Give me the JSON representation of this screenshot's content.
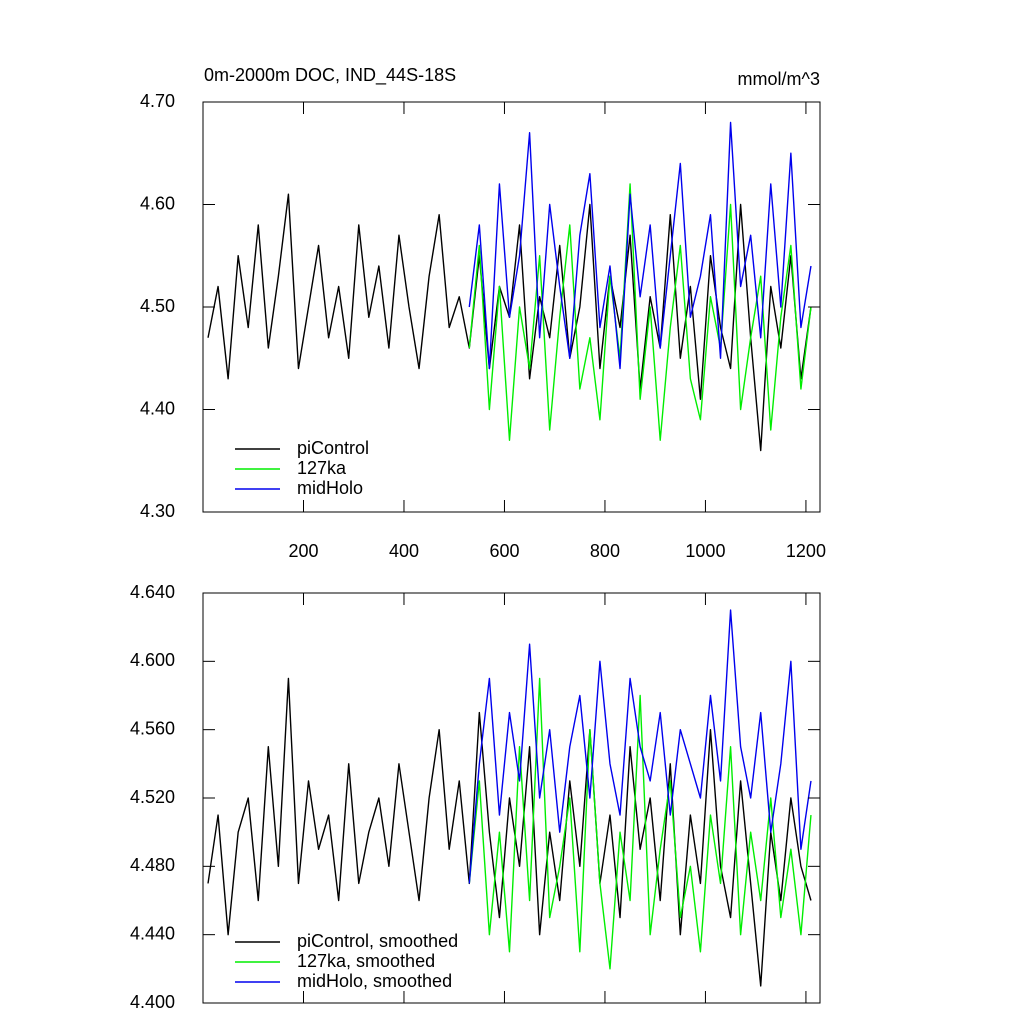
{
  "chart_data": [
    {
      "type": "line",
      "title": "0m-2000m DOC, IND_44S-18S",
      "annotation": "mmol/m^3",
      "x": [
        10,
        30,
        50,
        70,
        90,
        110,
        130,
        150,
        170,
        190,
        210,
        230,
        250,
        270,
        290,
        310,
        330,
        350,
        370,
        390,
        410,
        430,
        450,
        470,
        490,
        510,
        530,
        550,
        570,
        590,
        610,
        630,
        650,
        670,
        690,
        710,
        730,
        750,
        770,
        790,
        810,
        830,
        850,
        870,
        890,
        910,
        930,
        950,
        970,
        990,
        1010,
        1030,
        1050,
        1070,
        1090,
        1110,
        1130,
        1150,
        1170,
        1190,
        1210
      ],
      "xlim": [
        0,
        1228
      ],
      "xticks": [
        200,
        400,
        600,
        800,
        1000,
        1200
      ],
      "ylim": [
        4.3,
        4.7
      ],
      "yticks": [
        {
          "value": 4.3,
          "label": "4.30"
        },
        {
          "value": 4.4,
          "label": "4.40"
        },
        {
          "value": 4.5,
          "label": "4.50"
        },
        {
          "value": 4.6,
          "label": "4.60"
        },
        {
          "value": 4.7,
          "label": "4.70"
        }
      ],
      "series": [
        {
          "name": "piControl",
          "color": "#000000",
          "values": [
            4.47,
            4.52,
            4.43,
            4.55,
            4.48,
            4.58,
            4.46,
            4.53,
            4.61,
            4.44,
            4.5,
            4.56,
            4.47,
            4.52,
            4.45,
            4.58,
            4.49,
            4.54,
            4.46,
            4.57,
            4.5,
            4.44,
            4.53,
            4.59,
            4.48,
            4.51,
            4.46,
            4.55,
            4.44,
            4.52,
            4.49,
            4.58,
            4.43,
            4.51,
            4.47,
            4.56,
            4.45,
            4.5,
            4.6,
            4.44,
            4.53,
            4.48,
            4.57,
            4.42,
            4.51,
            4.46,
            4.59,
            4.45,
            4.52,
            4.41,
            4.55,
            4.48,
            4.44,
            4.6,
            4.47,
            4.36,
            4.52,
            4.46,
            4.55,
            4.43,
            4.5
          ]
        },
        {
          "name": "127ka",
          "color": "#00ee00",
          "values": [
            null,
            null,
            null,
            null,
            null,
            null,
            null,
            null,
            null,
            null,
            null,
            null,
            null,
            null,
            null,
            null,
            null,
            null,
            null,
            null,
            null,
            null,
            null,
            null,
            null,
            null,
            4.46,
            4.56,
            4.4,
            4.52,
            4.37,
            4.5,
            4.44,
            4.55,
            4.38,
            4.49,
            4.58,
            4.42,
            4.47,
            4.39,
            4.53,
            4.45,
            4.62,
            4.41,
            4.5,
            4.37,
            4.48,
            4.56,
            4.43,
            4.39,
            4.51,
            4.46,
            4.6,
            4.4,
            4.47,
            4.53,
            4.38,
            4.49,
            4.56,
            4.42,
            4.5
          ]
        },
        {
          "name": "midHolo",
          "color": "#0000ee",
          "values": [
            null,
            null,
            null,
            null,
            null,
            null,
            null,
            null,
            null,
            null,
            null,
            null,
            null,
            null,
            null,
            null,
            null,
            null,
            null,
            null,
            null,
            null,
            null,
            null,
            null,
            null,
            4.5,
            4.58,
            4.44,
            4.62,
            4.49,
            4.55,
            4.67,
            4.47,
            4.6,
            4.52,
            4.45,
            4.57,
            4.63,
            4.48,
            4.54,
            4.44,
            4.61,
            4.51,
            4.58,
            4.46,
            4.55,
            4.64,
            4.49,
            4.53,
            4.59,
            4.45,
            4.68,
            4.52,
            4.57,
            4.47,
            4.62,
            4.5,
            4.65,
            4.48,
            4.54
          ]
        }
      ]
    },
    {
      "type": "line",
      "x": [
        10,
        30,
        50,
        70,
        90,
        110,
        130,
        150,
        170,
        190,
        210,
        230,
        250,
        270,
        290,
        310,
        330,
        350,
        370,
        390,
        410,
        430,
        450,
        470,
        490,
        510,
        530,
        550,
        570,
        590,
        610,
        630,
        650,
        670,
        690,
        710,
        730,
        750,
        770,
        790,
        810,
        830,
        850,
        870,
        890,
        910,
        930,
        950,
        970,
        990,
        1010,
        1030,
        1050,
        1070,
        1090,
        1110,
        1130,
        1150,
        1170,
        1190,
        1210
      ],
      "xlim": [
        0,
        1228
      ],
      "xticks": [
        200,
        400,
        600,
        800,
        1000,
        1200
      ],
      "ylim": [
        4.4,
        4.64
      ],
      "yticks": [
        {
          "value": 4.4,
          "label": "4.400"
        },
        {
          "value": 4.44,
          "label": "4.440"
        },
        {
          "value": 4.48,
          "label": "4.480"
        },
        {
          "value": 4.52,
          "label": "4.520"
        },
        {
          "value": 4.56,
          "label": "4.560"
        },
        {
          "value": 4.6,
          "label": "4.600"
        },
        {
          "value": 4.64,
          "label": "4.640"
        }
      ],
      "series": [
        {
          "name": "piControl, smoothed",
          "color": "#000000",
          "values": [
            4.47,
            4.51,
            4.44,
            4.5,
            4.52,
            4.46,
            4.55,
            4.48,
            4.59,
            4.47,
            4.53,
            4.49,
            4.51,
            4.46,
            4.54,
            4.47,
            4.5,
            4.52,
            4.48,
            4.54,
            4.5,
            4.46,
            4.52,
            4.56,
            4.49,
            4.53,
            4.47,
            4.57,
            4.5,
            4.45,
            4.52,
            4.48,
            4.55,
            4.44,
            4.5,
            4.46,
            4.53,
            4.48,
            4.56,
            4.47,
            4.51,
            4.45,
            4.55,
            4.49,
            4.52,
            4.46,
            4.54,
            4.44,
            4.51,
            4.47,
            4.56,
            4.48,
            4.45,
            4.53,
            4.47,
            4.41,
            4.5,
            4.46,
            4.52,
            4.48,
            4.46
          ]
        },
        {
          "name": "127ka, smoothed",
          "color": "#00ee00",
          "values": [
            null,
            null,
            null,
            null,
            null,
            null,
            null,
            null,
            null,
            null,
            null,
            null,
            null,
            null,
            null,
            null,
            null,
            null,
            null,
            null,
            null,
            null,
            null,
            null,
            null,
            null,
            4.47,
            4.53,
            4.44,
            4.5,
            4.43,
            4.55,
            4.46,
            4.59,
            4.45,
            4.48,
            4.52,
            4.43,
            4.56,
            4.47,
            4.42,
            4.5,
            4.46,
            4.58,
            4.44,
            4.49,
            4.53,
            4.45,
            4.48,
            4.43,
            4.51,
            4.47,
            4.55,
            4.44,
            4.5,
            4.46,
            4.52,
            4.45,
            4.49,
            4.44,
            4.51
          ]
        },
        {
          "name": "midHolo, smoothed",
          "color": "#0000ee",
          "values": [
            null,
            null,
            null,
            null,
            null,
            null,
            null,
            null,
            null,
            null,
            null,
            null,
            null,
            null,
            null,
            null,
            null,
            null,
            null,
            null,
            null,
            null,
            null,
            null,
            null,
            null,
            4.47,
            4.54,
            4.59,
            4.51,
            4.57,
            4.53,
            4.61,
            4.52,
            4.56,
            4.5,
            4.55,
            4.58,
            4.52,
            4.6,
            4.54,
            4.51,
            4.59,
            4.55,
            4.53,
            4.57,
            4.51,
            4.56,
            4.54,
            4.52,
            4.58,
            4.53,
            4.63,
            4.55,
            4.52,
            4.57,
            4.5,
            4.54,
            4.6,
            4.49,
            4.53
          ]
        }
      ]
    }
  ]
}
